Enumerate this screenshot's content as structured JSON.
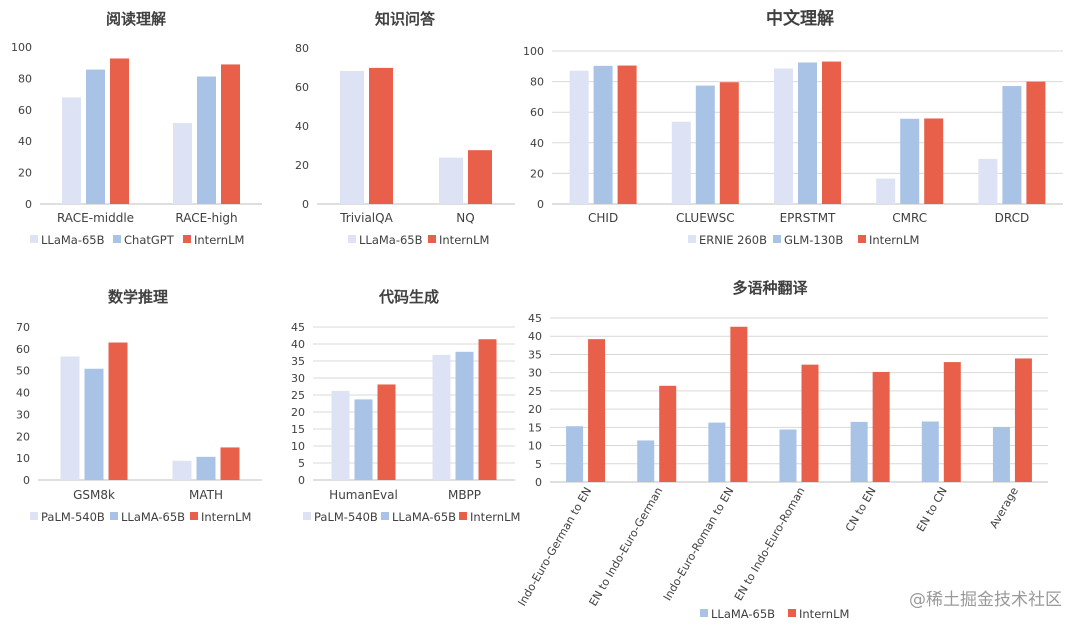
{
  "watermark": "@稀土掘金技术社区",
  "colors": {
    "light": "#dde3f4",
    "mid": "#a8c3e6",
    "red": "#e8604a",
    "axis": "#bfbfbf",
    "grid": "#d9d9d9",
    "text": "#404040",
    "title": "#404040"
  },
  "chart_data": [
    {
      "id": "reading",
      "type": "bar",
      "title": "阅读理解",
      "categories": [
        "RACE-middle",
        "RACE-high"
      ],
      "series": [
        {
          "name": "LLaMa-65B",
          "values": [
            67.9,
            51.6
          ],
          "color": "#dde3f4"
        },
        {
          "name": "ChatGPT",
          "values": [
            85.6,
            81.2
          ],
          "color": "#a8c3e6"
        },
        {
          "name": "InternLM",
          "values": [
            92.7,
            88.9
          ],
          "color": "#e8604a"
        }
      ],
      "ylim": [
        0,
        100
      ],
      "yticks": [
        0,
        20,
        40,
        60,
        80,
        100
      ],
      "grid": false,
      "legend": "bottom"
    },
    {
      "id": "knowledge",
      "type": "bar",
      "title": "知识问答",
      "categories": [
        "TrivialQA",
        "NQ"
      ],
      "series": [
        {
          "name": "LLaMa-65B",
          "values": [
            68.2,
            23.8
          ],
          "color": "#dde3f4"
        },
        {
          "name": "InternLM",
          "values": [
            69.8,
            27.6
          ],
          "color": "#e8604a"
        }
      ],
      "ylim": [
        0,
        80
      ],
      "yticks": [
        0,
        20,
        40,
        60,
        80
      ],
      "grid": false,
      "legend": "bottom"
    },
    {
      "id": "chinese",
      "type": "bar",
      "title": "中文理解",
      "categories": [
        "CHID",
        "CLUEWSC",
        "EPRSTMT",
        "CMRC",
        "DRCD"
      ],
      "series": [
        {
          "name": "ERNIE 260B",
          "values": [
            87.1,
            53.8,
            88.6,
            16.6,
            29.5
          ],
          "color": "#dde3f4"
        },
        {
          "name": "GLM-130B",
          "values": [
            90.3,
            77.4,
            92.5,
            55.7,
            77.1
          ],
          "color": "#a8c3e6"
        },
        {
          "name": "InternLM",
          "values": [
            90.5,
            79.6,
            93.1,
            55.9,
            80.0
          ],
          "color": "#e8604a"
        }
      ],
      "ylim": [
        0,
        100
      ],
      "yticks": [
        0,
        20,
        40,
        60,
        80,
        100
      ],
      "grid": true,
      "legend": "bottom"
    },
    {
      "id": "math",
      "type": "bar",
      "title": "数学推理",
      "categories": [
        "GSM8k",
        "MATH"
      ],
      "series": [
        {
          "name": "PaLM-540B",
          "values": [
            56.5,
            8.8
          ],
          "color": "#dde3f4"
        },
        {
          "name": "LLaMA-65B",
          "values": [
            50.9,
            10.6
          ],
          "color": "#a8c3e6"
        },
        {
          "name": "InternLM",
          "values": [
            62.9,
            14.9
          ],
          "color": "#e8604a"
        }
      ],
      "ylim": [
        0,
        70
      ],
      "yticks": [
        0,
        10,
        20,
        30,
        40,
        50,
        60,
        70
      ],
      "grid": false,
      "legend": "bottom"
    },
    {
      "id": "code",
      "type": "bar",
      "title": "代码生成",
      "categories": [
        "HumanEval",
        "MBPP"
      ],
      "series": [
        {
          "name": "PaLM-540B",
          "values": [
            26.2,
            36.8
          ],
          "color": "#dde3f4"
        },
        {
          "name": "LLaMA-65B",
          "values": [
            23.7,
            37.7
          ],
          "color": "#a8c3e6"
        },
        {
          "name": "InternLM",
          "values": [
            28.1,
            41.4
          ],
          "color": "#e8604a"
        }
      ],
      "ylim": [
        0,
        45
      ],
      "yticks": [
        0,
        5,
        10,
        15,
        20,
        25,
        30,
        35,
        40,
        45
      ],
      "grid": true,
      "legend": "bottom"
    },
    {
      "id": "translation",
      "type": "bar",
      "title": "多语种翻译",
      "categories": [
        "Indo-Euro-German to EN",
        "EN to Indo-Euro-German",
        "Indo-Euro-Roman to EN",
        "EN to Indo-Euro-Roman",
        "CN to EN",
        "EN to CN",
        "Average"
      ],
      "series": [
        {
          "name": "LLaMA-65B",
          "values": [
            15.3,
            11.4,
            16.3,
            14.4,
            16.5,
            16.6,
            15.1
          ],
          "color": "#a8c3e6"
        },
        {
          "name": "InternLM",
          "values": [
            39.2,
            26.4,
            42.6,
            32.2,
            30.2,
            32.9,
            33.9
          ],
          "color": "#e8604a"
        }
      ],
      "ylim": [
        0,
        45
      ],
      "yticks": [
        0,
        5,
        10,
        15,
        20,
        25,
        30,
        35,
        40,
        45
      ],
      "grid": true,
      "legend": "bottom"
    }
  ]
}
